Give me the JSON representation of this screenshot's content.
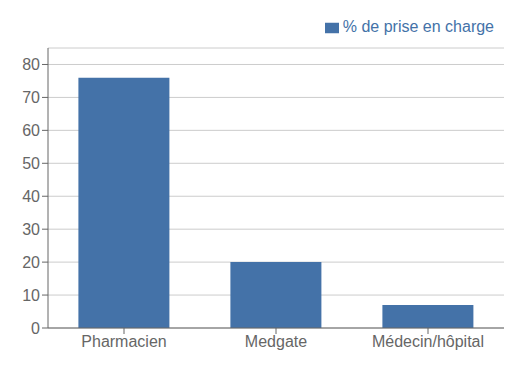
{
  "chart_data": {
    "type": "bar",
    "categories": [
      "Pharmacien",
      "Medgate",
      "Médecin/hôpital"
    ],
    "series": [
      {
        "name": "% de prise en charge",
        "color": "#4472A8",
        "values": [
          76,
          20,
          7
        ]
      }
    ],
    "ylim": [
      0,
      85
    ],
    "yticks": [
      0,
      10,
      20,
      30,
      40,
      50,
      60,
      70,
      80
    ],
    "grid": true,
    "legend": "upper right"
  }
}
